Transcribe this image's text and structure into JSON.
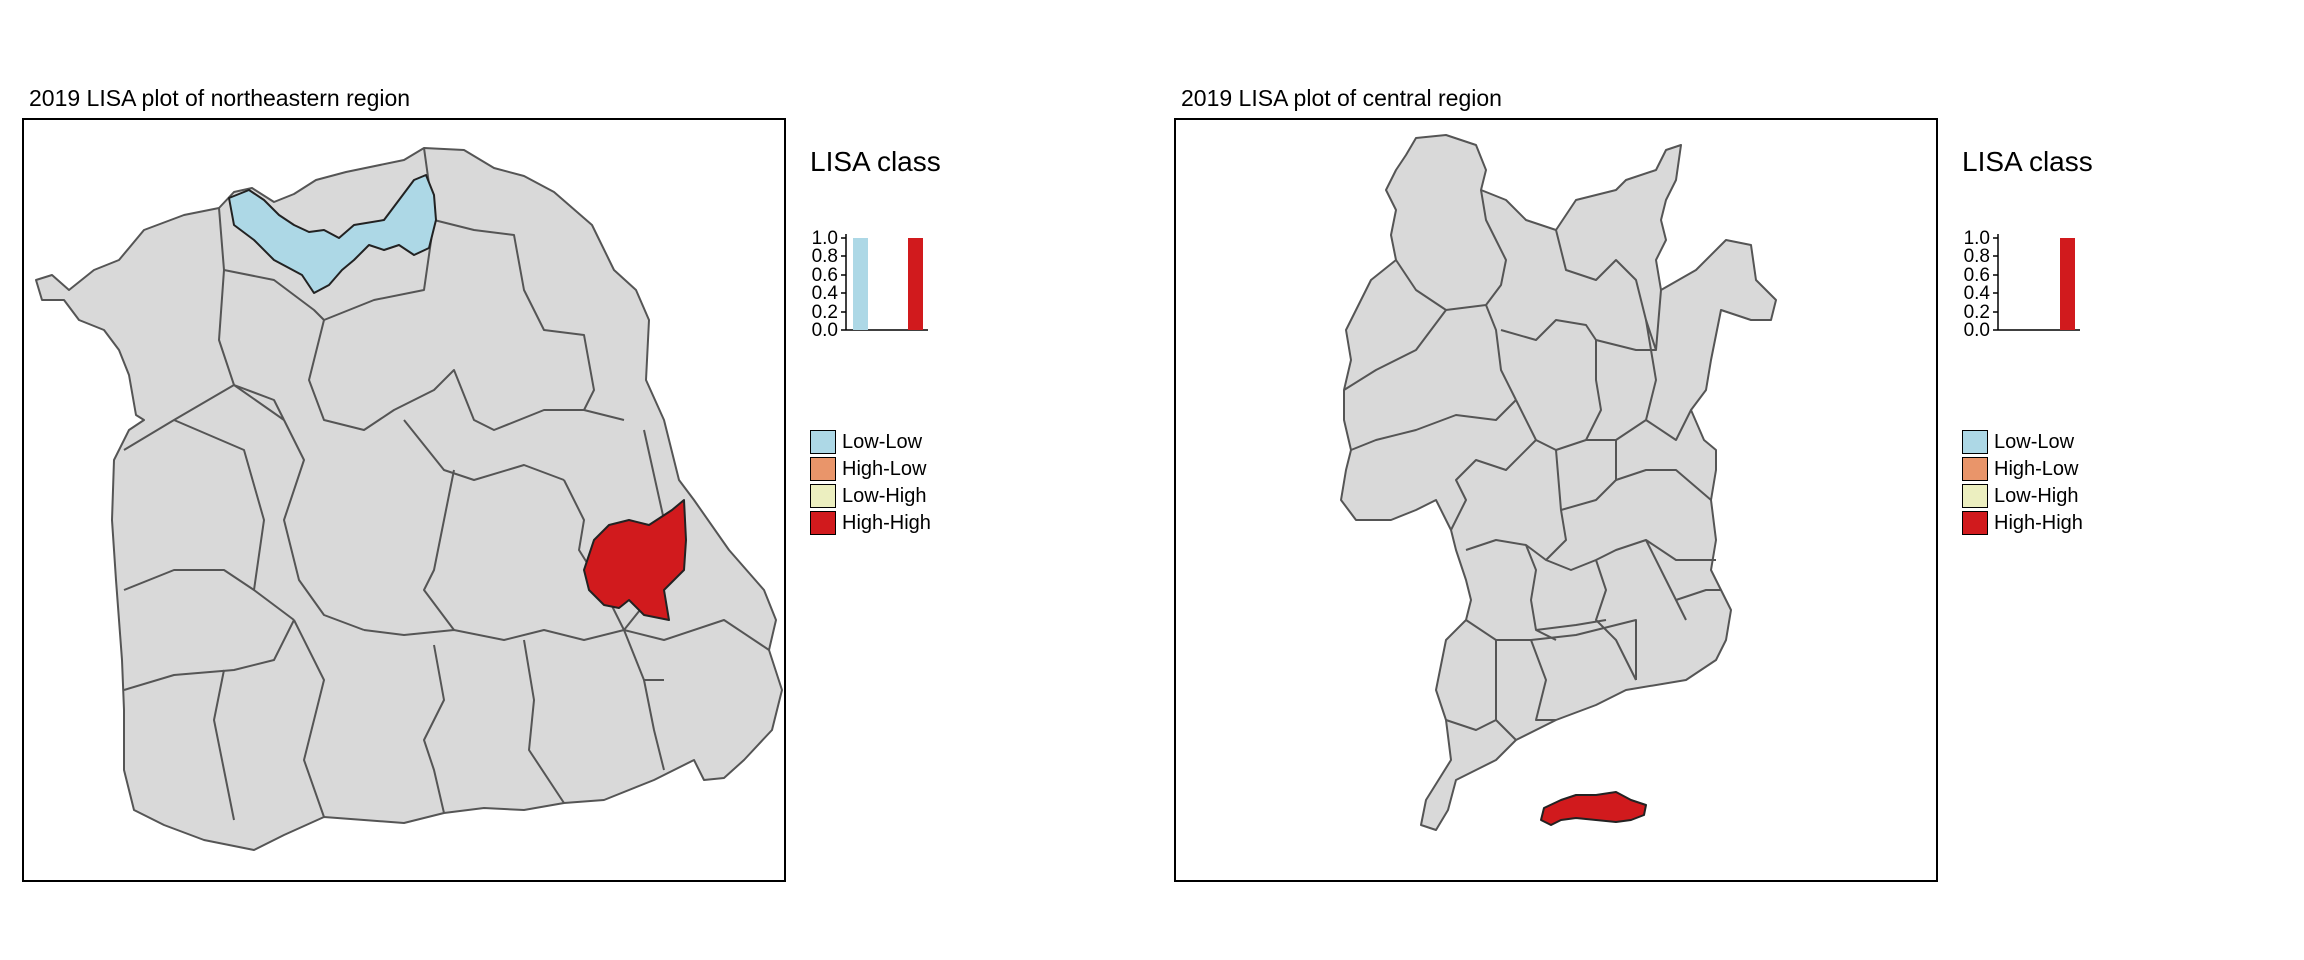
{
  "colors": {
    "neutral_fill": "#d9d9d9",
    "border": "#555555",
    "low_low": "#add8e6",
    "high_low": "#e9956a",
    "low_high": "#ecefc0",
    "high_high": "#d11a1d"
  },
  "legend": {
    "title": "LISA class",
    "entries": [
      {
        "label": "Low-Low",
        "color": "#add8e6"
      },
      {
        "label": "High-Low",
        "color": "#e9956a"
      },
      {
        "label": "Low-High",
        "color": "#ecefc0"
      },
      {
        "label": "High-High",
        "color": "#d11a1d"
      }
    ],
    "y_ticks": [
      "0.0",
      "0.2",
      "0.4",
      "0.6",
      "0.8",
      "1.0"
    ]
  },
  "maps": [
    {
      "title": "2019 LISA plot of northeastern region"
    },
    {
      "title": "2019 LISA plot of central region"
    }
  ],
  "chart_data": [
    {
      "type": "bar",
      "title": "LISA class",
      "categories": [
        "Low-Low",
        "High-High"
      ],
      "values": [
        1.0,
        1.0
      ],
      "ylim": [
        0,
        1.0
      ]
    },
    {
      "type": "bar",
      "title": "LISA class",
      "categories": [
        "Low-Low",
        "High-High"
      ],
      "values": [
        0.0,
        1.0
      ],
      "ylim": [
        0,
        1.0
      ]
    }
  ]
}
